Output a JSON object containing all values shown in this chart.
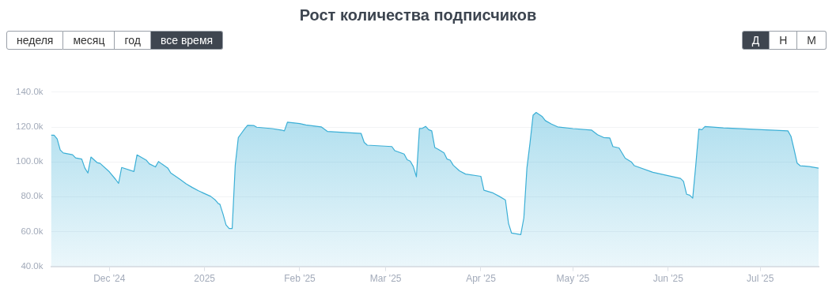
{
  "chart_data": {
    "type": "area",
    "title": "Рост количества подписчиков",
    "annotations": [
      "неделя",
      "месяц",
      "год",
      "все время",
      "Д",
      "Н",
      "М"
    ],
    "x": [
      "2024-11-12",
      "2024-11-13",
      "2024-11-14",
      "2024-11-15",
      "2024-11-16",
      "2024-11-19",
      "2024-11-20",
      "2024-11-22",
      "2024-11-23",
      "2024-11-24",
      "2024-11-25",
      "2024-11-27",
      "2024-11-28",
      "2024-12-01",
      "2024-12-03",
      "2024-12-04",
      "2024-12-05",
      "2024-12-09",
      "2024-12-10",
      "2024-12-13",
      "2024-12-14",
      "2024-12-16",
      "2024-12-17",
      "2024-12-18",
      "2024-12-20",
      "2024-12-21",
      "2024-12-24",
      "2024-12-26",
      "2024-12-28",
      "2024-12-30",
      "2025-01-01",
      "2025-01-03",
      "2025-01-04T12:00",
      "2025-01-05T12:00",
      "2025-01-06",
      "2025-01-07",
      "2025-01-08",
      "2025-01-09",
      "2025-01-10",
      "2025-01-11",
      "2025-01-12",
      "2025-01-13",
      "2025-01-14",
      "2025-01-15",
      "2025-01-17",
      "2025-01-18",
      "2025-01-23",
      "2025-01-26",
      "2025-01-27",
      "2025-01-28",
      "2025-02-01",
      "2025-02-03",
      "2025-02-08",
      "2025-02-10",
      "2025-02-21",
      "2025-02-22",
      "2025-02-23",
      "2025-03-03",
      "2025-03-04",
      "2025-03-07",
      "2025-03-08",
      "2025-03-09",
      "2025-03-10",
      "2025-03-11",
      "2025-03-12",
      "2025-03-13",
      "2025-03-14",
      "2025-03-15",
      "2025-03-16",
      "2025-03-17",
      "2025-03-18",
      "2025-03-20",
      "2025-03-21",
      "2025-03-22",
      "2025-03-23",
      "2025-03-25",
      "2025-03-27",
      "2025-04-01",
      "2025-04-02",
      "2025-04-05",
      "2025-04-07",
      "2025-04-09",
      "2025-04-10",
      "2025-04-11",
      "2025-04-14",
      "2025-04-15",
      "2025-04-16",
      "2025-04-17",
      "2025-04-18",
      "2025-04-19",
      "2025-04-21",
      "2025-04-22",
      "2025-04-24",
      "2025-04-26",
      "2025-05-01",
      "2025-05-07",
      "2025-05-09",
      "2025-05-11",
      "2025-05-13",
      "2025-05-14",
      "2025-05-16",
      "2025-05-18",
      "2025-05-20",
      "2025-05-21",
      "2025-05-27",
      "2025-06-05",
      "2025-06-06",
      "2025-06-07",
      "2025-06-08",
      "2025-06-09",
      "2025-06-10",
      "2025-06-11",
      "2025-06-12",
      "2025-06-13",
      "2025-06-19",
      "2025-07-10",
      "2025-07-11",
      "2025-07-12",
      "2025-07-13",
      "2025-07-14",
      "2025-07-17",
      "2025-07-20"
    ],
    "values": [
      115300,
      115300,
      113200,
      106800,
      105100,
      104100,
      102300,
      101600,
      96500,
      93600,
      102800,
      99600,
      99100,
      94300,
      90000,
      87700,
      96800,
      94500,
      104000,
      101000,
      98900,
      97100,
      100200,
      98900,
      96500,
      93600,
      90000,
      87400,
      85300,
      83400,
      81800,
      80200,
      78100,
      76000,
      75700,
      70100,
      63800,
      61700,
      61700,
      98100,
      114000,
      116400,
      118800,
      121000,
      120900,
      119900,
      119100,
      118300,
      117800,
      122800,
      122000,
      121200,
      120100,
      117500,
      116300,
      111200,
      109600,
      108800,
      106400,
      104500,
      101200,
      100400,
      97300,
      91400,
      119200,
      119300,
      120400,
      118500,
      117800,
      108200,
      107300,
      105200,
      101600,
      101000,
      98100,
      94900,
      93000,
      91700,
      83700,
      82100,
      80200,
      78100,
      64700,
      59100,
      58200,
      67800,
      96500,
      110800,
      126800,
      128400,
      126000,
      123700,
      121700,
      120100,
      119100,
      118300,
      115600,
      114000,
      113700,
      108800,
      108000,
      102100,
      100000,
      97800,
      94000,
      90500,
      88800,
      81400,
      80900,
      79200,
      98100,
      118800,
      118500,
      120300,
      119500,
      117800,
      114700,
      107300,
      99300,
      97800,
      97300,
      96400
    ],
    "color": "#3bafd6",
    "xlim": [
      "2024-11-12",
      "2025-07-20"
    ],
    "xticks": [
      {
        "value": "2024-12-01",
        "label": "Dec '24"
      },
      {
        "value": "2025-01-01",
        "label": "2025"
      },
      {
        "value": "2025-02-01",
        "label": "Feb '25"
      },
      {
        "value": "2025-03-01",
        "label": "Mar '25"
      },
      {
        "value": "2025-04-01",
        "label": "Apr '25"
      },
      {
        "value": "2025-05-01",
        "label": "May '25"
      },
      {
        "value": "2025-06-01",
        "label": "Jun '25"
      },
      {
        "value": "2025-07-01",
        "label": "Jul '25"
      }
    ],
    "ylim": [
      40000,
      140000
    ],
    "yticks": [
      {
        "value": 40000,
        "label": "40.0k"
      },
      {
        "value": 60000,
        "label": "60.0k"
      },
      {
        "value": 80000,
        "label": "80.0k"
      },
      {
        "value": 100000,
        "label": "100.0k"
      },
      {
        "value": 120000,
        "label": "120.0k"
      },
      {
        "value": 140000,
        "label": "140.0k"
      }
    ],
    "grid": "y",
    "legend": false,
    "marker": "none",
    "line_style": "solid"
  }
}
